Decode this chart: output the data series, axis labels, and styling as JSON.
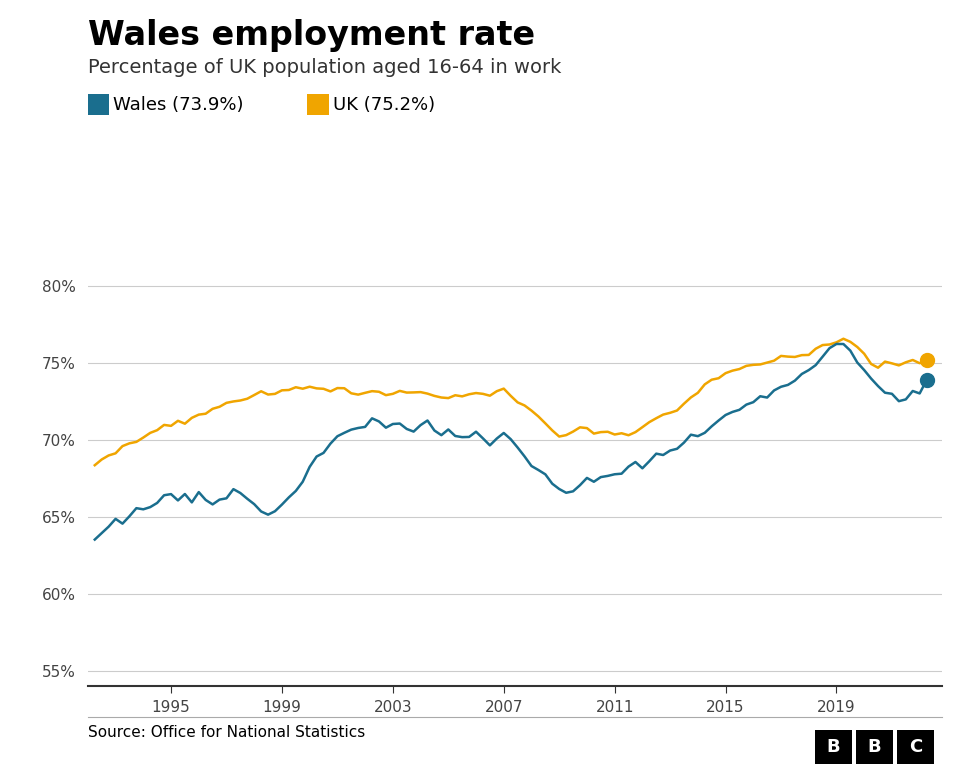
{
  "title": "Wales employment rate",
  "subtitle": "Percentage of UK population aged 16-64 in work",
  "legend_wales": "Wales (73.9%)",
  "legend_uk": "UK (75.2%)",
  "wales_color": "#1a6e8e",
  "uk_color": "#f0a500",
  "source_text": "Source: Office for National Statistics",
  "ylim": [
    54,
    82
  ],
  "yticks": [
    55,
    60,
    65,
    70,
    75,
    80
  ],
  "ytick_labels": [
    "55%",
    "60%",
    "65%",
    "70%",
    "75%",
    "80%"
  ],
  "xticks": [
    1995,
    1999,
    2003,
    2007,
    2011,
    2015,
    2019
  ],
  "wales_data": [
    [
      1992.25,
      63.4
    ],
    [
      1992.5,
      63.9
    ],
    [
      1992.75,
      64.3
    ],
    [
      1993.0,
      64.6
    ],
    [
      1993.25,
      64.4
    ],
    [
      1993.5,
      65.1
    ],
    [
      1993.75,
      65.4
    ],
    [
      1994.0,
      65.2
    ],
    [
      1994.25,
      65.6
    ],
    [
      1994.5,
      65.9
    ],
    [
      1994.75,
      66.4
    ],
    [
      1995.0,
      66.6
    ],
    [
      1995.25,
      66.1
    ],
    [
      1995.5,
      66.7
    ],
    [
      1995.75,
      66.4
    ],
    [
      1996.0,
      66.9
    ],
    [
      1996.25,
      66.3
    ],
    [
      1996.5,
      65.9
    ],
    [
      1996.75,
      66.2
    ],
    [
      1997.0,
      66.5
    ],
    [
      1997.25,
      66.8
    ],
    [
      1997.5,
      66.4
    ],
    [
      1997.75,
      66.2
    ],
    [
      1998.0,
      66.0
    ],
    [
      1998.25,
      65.6
    ],
    [
      1998.5,
      65.2
    ],
    [
      1998.75,
      65.5
    ],
    [
      1999.0,
      65.9
    ],
    [
      1999.25,
      66.3
    ],
    [
      1999.5,
      66.8
    ],
    [
      1999.75,
      67.4
    ],
    [
      2000.0,
      68.1
    ],
    [
      2000.25,
      68.7
    ],
    [
      2000.5,
      69.3
    ],
    [
      2000.75,
      69.8
    ],
    [
      2001.0,
      70.3
    ],
    [
      2001.25,
      70.6
    ],
    [
      2001.5,
      70.9
    ],
    [
      2001.75,
      71.2
    ],
    [
      2002.0,
      71.0
    ],
    [
      2002.25,
      71.3
    ],
    [
      2002.5,
      71.1
    ],
    [
      2002.75,
      70.8
    ],
    [
      2003.0,
      71.1
    ],
    [
      2003.25,
      71.3
    ],
    [
      2003.5,
      71.0
    ],
    [
      2003.75,
      70.7
    ],
    [
      2004.0,
      70.9
    ],
    [
      2004.25,
      71.1
    ],
    [
      2004.5,
      70.8
    ],
    [
      2004.75,
      70.5
    ],
    [
      2005.0,
      70.7
    ],
    [
      2005.25,
      70.4
    ],
    [
      2005.5,
      70.2
    ],
    [
      2005.75,
      70.0
    ],
    [
      2006.0,
      70.3
    ],
    [
      2006.25,
      70.1
    ],
    [
      2006.5,
      69.8
    ],
    [
      2006.75,
      70.1
    ],
    [
      2007.0,
      70.3
    ],
    [
      2007.25,
      70.0
    ],
    [
      2007.5,
      69.6
    ],
    [
      2007.75,
      69.1
    ],
    [
      2008.0,
      68.6
    ],
    [
      2008.25,
      68.1
    ],
    [
      2008.5,
      67.5
    ],
    [
      2008.75,
      67.0
    ],
    [
      2009.0,
      66.7
    ],
    [
      2009.25,
      66.4
    ],
    [
      2009.5,
      66.7
    ],
    [
      2009.75,
      67.1
    ],
    [
      2010.0,
      67.3
    ],
    [
      2010.25,
      67.1
    ],
    [
      2010.5,
      67.4
    ],
    [
      2010.75,
      67.8
    ],
    [
      2011.0,
      68.0
    ],
    [
      2011.25,
      67.7
    ],
    [
      2011.5,
      68.3
    ],
    [
      2011.75,
      68.6
    ],
    [
      2012.0,
      68.4
    ],
    [
      2012.25,
      68.9
    ],
    [
      2012.5,
      69.1
    ],
    [
      2012.75,
      68.8
    ],
    [
      2013.0,
      69.2
    ],
    [
      2013.25,
      69.6
    ],
    [
      2013.5,
      70.0
    ],
    [
      2013.75,
      70.3
    ],
    [
      2014.0,
      70.1
    ],
    [
      2014.25,
      70.5
    ],
    [
      2014.5,
      70.9
    ],
    [
      2014.75,
      71.2
    ],
    [
      2015.0,
      71.5
    ],
    [
      2015.25,
      71.8
    ],
    [
      2015.5,
      72.1
    ],
    [
      2015.75,
      72.4
    ],
    [
      2016.0,
      72.7
    ],
    [
      2016.25,
      73.0
    ],
    [
      2016.5,
      72.7
    ],
    [
      2016.75,
      73.2
    ],
    [
      2017.0,
      73.5
    ],
    [
      2017.25,
      73.8
    ],
    [
      2017.5,
      74.1
    ],
    [
      2017.75,
      74.4
    ],
    [
      2018.0,
      74.7
    ],
    [
      2018.25,
      75.0
    ],
    [
      2018.5,
      75.4
    ],
    [
      2018.75,
      75.7
    ],
    [
      2019.0,
      76.0
    ],
    [
      2019.25,
      76.2
    ],
    [
      2019.5,
      75.8
    ],
    [
      2019.75,
      75.3
    ],
    [
      2020.0,
      74.8
    ],
    [
      2020.25,
      74.0
    ],
    [
      2020.5,
      73.2
    ],
    [
      2020.75,
      72.8
    ],
    [
      2021.0,
      73.0
    ],
    [
      2021.25,
      72.5
    ],
    [
      2021.5,
      72.8
    ],
    [
      2021.75,
      73.2
    ],
    [
      2022.0,
      72.8
    ],
    [
      2022.25,
      73.9
    ]
  ],
  "uk_data": [
    [
      1992.25,
      68.5
    ],
    [
      1992.5,
      68.7
    ],
    [
      1992.75,
      69.0
    ],
    [
      1993.0,
      69.2
    ],
    [
      1993.25,
      69.4
    ],
    [
      1993.5,
      69.7
    ],
    [
      1993.75,
      70.0
    ],
    [
      1994.0,
      70.2
    ],
    [
      1994.25,
      70.5
    ],
    [
      1994.5,
      70.8
    ],
    [
      1994.75,
      71.1
    ],
    [
      1995.0,
      71.0
    ],
    [
      1995.25,
      71.3
    ],
    [
      1995.5,
      71.1
    ],
    [
      1995.75,
      71.4
    ],
    [
      1996.0,
      71.6
    ],
    [
      1996.25,
      71.8
    ],
    [
      1996.5,
      72.0
    ],
    [
      1996.75,
      72.2
    ],
    [
      1997.0,
      72.5
    ],
    [
      1997.25,
      72.4
    ],
    [
      1997.5,
      72.6
    ],
    [
      1997.75,
      72.8
    ],
    [
      1998.0,
      72.9
    ],
    [
      1998.25,
      73.1
    ],
    [
      1998.5,
      73.0
    ],
    [
      1998.75,
      73.2
    ],
    [
      1999.0,
      73.3
    ],
    [
      1999.25,
      73.2
    ],
    [
      1999.5,
      73.4
    ],
    [
      1999.75,
      73.3
    ],
    [
      2000.0,
      73.5
    ],
    [
      2000.25,
      73.4
    ],
    [
      2000.5,
      73.3
    ],
    [
      2000.75,
      73.2
    ],
    [
      2001.0,
      73.3
    ],
    [
      2001.25,
      73.2
    ],
    [
      2001.5,
      73.1
    ],
    [
      2001.75,
      73.0
    ],
    [
      2002.0,
      73.1
    ],
    [
      2002.25,
      73.2
    ],
    [
      2002.5,
      73.0
    ],
    [
      2002.75,
      72.9
    ],
    [
      2003.0,
      73.0
    ],
    [
      2003.25,
      73.1
    ],
    [
      2003.5,
      73.0
    ],
    [
      2003.75,
      72.9
    ],
    [
      2004.0,
      73.0
    ],
    [
      2004.25,
      73.1
    ],
    [
      2004.5,
      73.0
    ],
    [
      2004.75,
      72.9
    ],
    [
      2005.0,
      72.8
    ],
    [
      2005.25,
      72.9
    ],
    [
      2005.5,
      72.8
    ],
    [
      2005.75,
      72.9
    ],
    [
      2006.0,
      73.0
    ],
    [
      2006.25,
      72.9
    ],
    [
      2006.5,
      72.8
    ],
    [
      2006.75,
      73.0
    ],
    [
      2007.0,
      73.1
    ],
    [
      2007.25,
      72.9
    ],
    [
      2007.5,
      72.6
    ],
    [
      2007.75,
      72.3
    ],
    [
      2008.0,
      71.9
    ],
    [
      2008.25,
      71.5
    ],
    [
      2008.5,
      71.0
    ],
    [
      2008.75,
      70.6
    ],
    [
      2009.0,
      70.3
    ],
    [
      2009.25,
      70.5
    ],
    [
      2009.5,
      70.7
    ],
    [
      2009.75,
      70.8
    ],
    [
      2010.0,
      70.7
    ],
    [
      2010.25,
      70.5
    ],
    [
      2010.5,
      70.6
    ],
    [
      2010.75,
      70.5
    ],
    [
      2011.0,
      70.4
    ],
    [
      2011.25,
      70.5
    ],
    [
      2011.5,
      70.3
    ],
    [
      2011.75,
      70.6
    ],
    [
      2012.0,
      70.9
    ],
    [
      2012.25,
      71.1
    ],
    [
      2012.5,
      71.3
    ],
    [
      2012.75,
      71.5
    ],
    [
      2013.0,
      71.8
    ],
    [
      2013.25,
      72.1
    ],
    [
      2013.5,
      72.4
    ],
    [
      2013.75,
      72.7
    ],
    [
      2014.0,
      73.0
    ],
    [
      2014.25,
      73.3
    ],
    [
      2014.5,
      73.6
    ],
    [
      2014.75,
      73.9
    ],
    [
      2015.0,
      74.2
    ],
    [
      2015.25,
      74.4
    ],
    [
      2015.5,
      74.6
    ],
    [
      2015.75,
      74.8
    ],
    [
      2016.0,
      74.9
    ],
    [
      2016.25,
      75.0
    ],
    [
      2016.5,
      75.1
    ],
    [
      2016.75,
      75.2
    ],
    [
      2017.0,
      75.3
    ],
    [
      2017.25,
      75.4
    ],
    [
      2017.5,
      75.5
    ],
    [
      2017.75,
      75.6
    ],
    [
      2018.0,
      75.7
    ],
    [
      2018.25,
      75.9
    ],
    [
      2018.5,
      76.1
    ],
    [
      2018.75,
      76.3
    ],
    [
      2019.0,
      76.5
    ],
    [
      2019.25,
      76.6
    ],
    [
      2019.5,
      76.4
    ],
    [
      2019.75,
      76.1
    ],
    [
      2020.0,
      75.6
    ],
    [
      2020.25,
      75.0
    ],
    [
      2020.5,
      74.6
    ],
    [
      2020.75,
      74.9
    ],
    [
      2021.0,
      75.1
    ],
    [
      2021.25,
      75.0
    ],
    [
      2021.5,
      75.1
    ],
    [
      2021.75,
      75.2
    ],
    [
      2022.0,
      75.0
    ],
    [
      2022.25,
      75.2
    ]
  ]
}
